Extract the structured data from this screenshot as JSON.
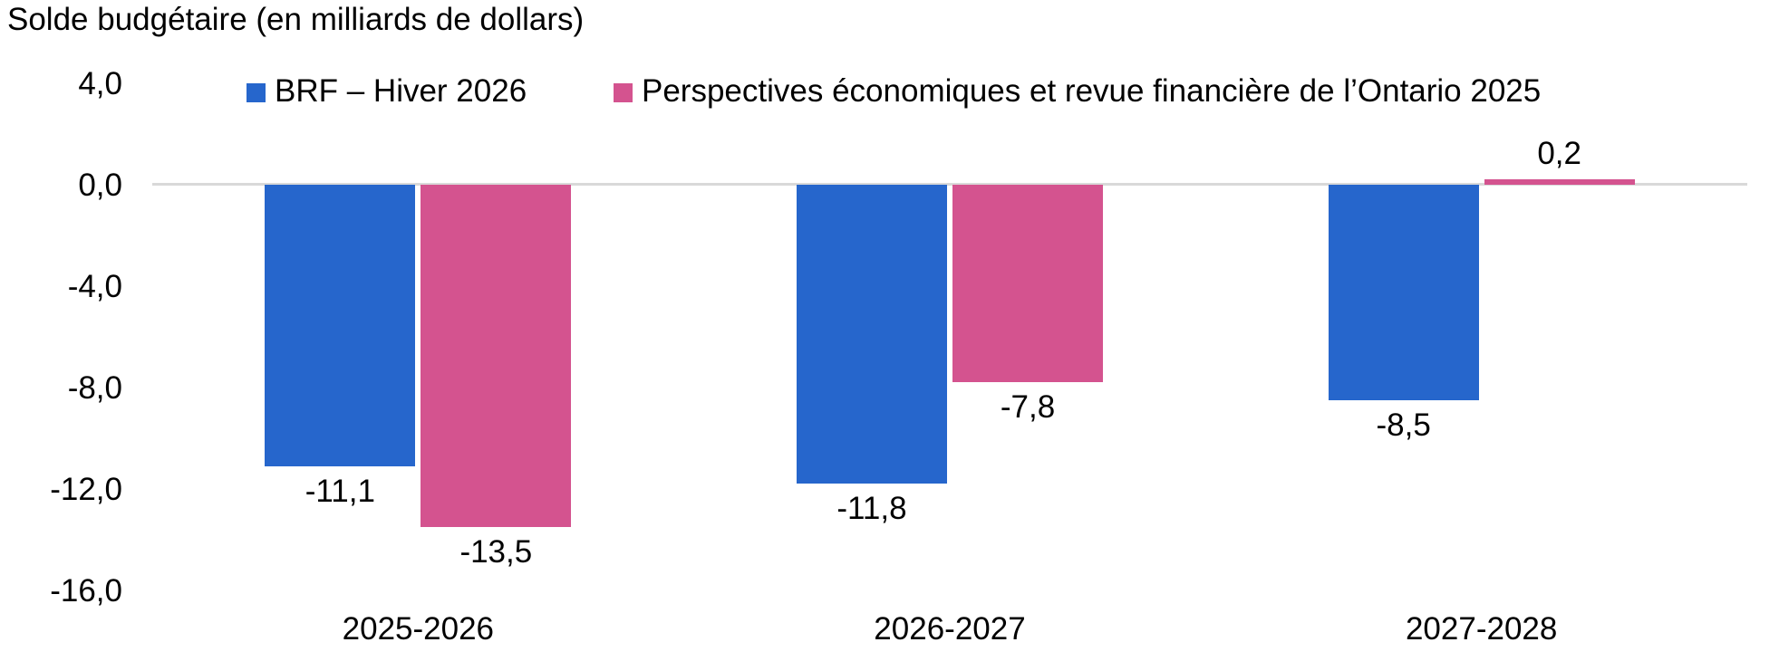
{
  "title": "Solde budgétaire (en milliards de dollars)",
  "legend": {
    "items": [
      {
        "label": "BRF – Hiver 2026",
        "color": "#2666CC"
      },
      {
        "label": "Perspectives économiques et revue financière de l’Ontario 2025",
        "color": "#D4538F"
      }
    ]
  },
  "chart_data": {
    "type": "bar",
    "title": "Solde budgétaire (en milliards de dollars)",
    "categories": [
      "2025-2026",
      "2026-2027",
      "2027-2028"
    ],
    "series": [
      {
        "name": "BRF – Hiver 2026",
        "color": "#2666CC",
        "values": [
          -11.1,
          -11.8,
          -8.5
        ],
        "value_labels": [
          "-11,1",
          "-11,8",
          "-8,5"
        ]
      },
      {
        "name": "Perspectives économiques et revue financière de l’Ontario 2025",
        "color": "#D4538F",
        "values": [
          -13.5,
          -7.8,
          0.2
        ],
        "value_labels": [
          "-13,5",
          "-7,8",
          "0,2"
        ]
      }
    ],
    "ylabel": "Solde budgétaire (en milliards de dollars)",
    "ylim": [
      -16,
      4
    ],
    "yticks": [
      4,
      0,
      -4,
      -8,
      -12,
      -16
    ],
    "ytick_labels": [
      "4,0",
      "0,0",
      "-4,0",
      "-8,0",
      "-12,0",
      "-16,0"
    ],
    "grid": false,
    "zero_line": true,
    "zero_line_color": "#D9D9D9",
    "legend_position": "top",
    "text_color": "#000000",
    "background_color": "#FFFFFF"
  }
}
